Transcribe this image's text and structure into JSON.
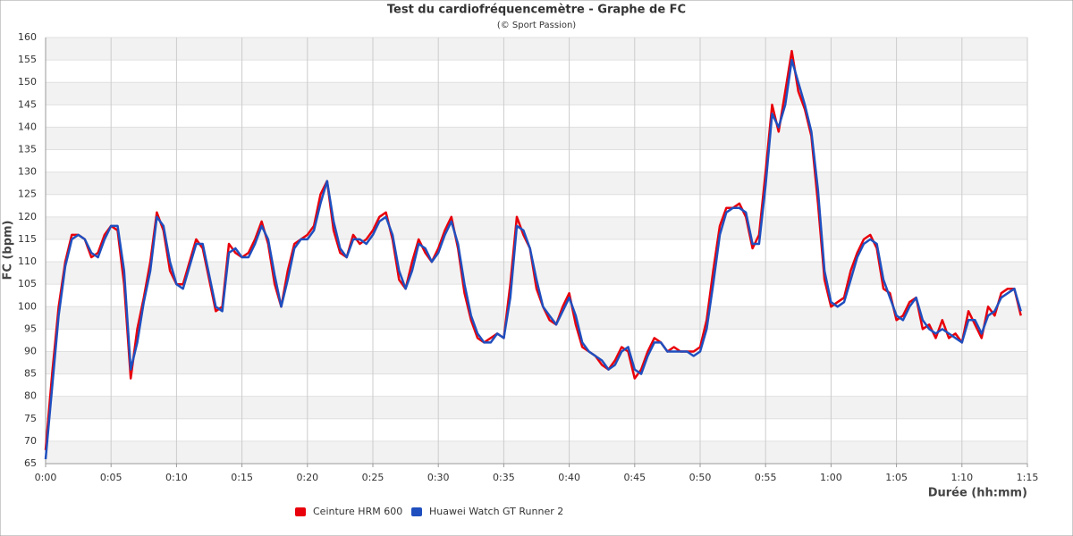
{
  "chart_data": {
    "type": "line",
    "title": "Test du cardiofréquencemètre - Graphe de FC",
    "subtitle": "(© Sport Passion)",
    "x_label": "Durée (hh:mm)",
    "y_label": "FC (bpm)",
    "xlim": [
      0,
      75
    ],
    "xticks": [
      {
        "value": 0,
        "label": "0:00"
      },
      {
        "value": 5,
        "label": "0:05"
      },
      {
        "value": 10,
        "label": "0:10"
      },
      {
        "value": 15,
        "label": "0:15"
      },
      {
        "value": 20,
        "label": "0:20"
      },
      {
        "value": 25,
        "label": "0:25"
      },
      {
        "value": 30,
        "label": "0:30"
      },
      {
        "value": 35,
        "label": "0:35"
      },
      {
        "value": 40,
        "label": "0:40"
      },
      {
        "value": 45,
        "label": "0:45"
      },
      {
        "value": 50,
        "label": "0:50"
      },
      {
        "value": 55,
        "label": "0:55"
      },
      {
        "value": 60,
        "label": "1:00"
      },
      {
        "value": 65,
        "label": "1:05"
      },
      {
        "value": 70,
        "label": "1:10"
      },
      {
        "value": 75,
        "label": "1:15"
      }
    ],
    "ylim": [
      65,
      160
    ],
    "yticks": [
      65,
      70,
      75,
      80,
      85,
      90,
      95,
      100,
      105,
      110,
      115,
      120,
      125,
      130,
      135,
      140,
      145,
      150,
      155,
      160
    ],
    "grid": true,
    "legend": "bottom",
    "x": [
      0,
      0.5,
      1,
      1.5,
      2,
      2.5,
      3,
      3.5,
      4,
      4.5,
      5,
      5.5,
      6,
      6.5,
      7,
      7.5,
      8,
      8.5,
      9,
      9.5,
      10,
      10.5,
      11,
      11.5,
      12,
      12.5,
      13,
      13.5,
      14,
      14.5,
      15,
      15.5,
      16,
      16.5,
      17,
      17.5,
      18,
      18.5,
      19,
      19.5,
      20,
      20.5,
      21,
      21.5,
      22,
      22.5,
      23,
      23.5,
      24,
      24.5,
      25,
      25.5,
      26,
      26.5,
      27,
      27.5,
      28,
      28.5,
      29,
      29.5,
      30,
      30.5,
      31,
      31.5,
      32,
      32.5,
      33,
      33.5,
      34,
      34.5,
      35,
      35.5,
      36,
      36.5,
      37,
      37.5,
      38,
      38.5,
      39,
      39.5,
      40,
      40.5,
      41,
      41.5,
      42,
      42.5,
      43,
      43.5,
      44,
      44.5,
      45,
      45.5,
      46,
      46.5,
      47,
      47.5,
      48,
      48.5,
      49,
      49.5,
      50,
      50.5,
      51,
      51.5,
      52,
      52.5,
      53,
      53.5,
      54,
      54.5,
      55,
      55.5,
      56,
      56.5,
      57,
      57.5,
      58,
      58.5,
      59,
      59.5,
      60,
      60.5,
      61,
      61.5,
      62,
      62.5,
      63,
      63.5,
      64,
      64.5,
      65,
      65.5,
      66,
      66.5,
      67,
      67.5,
      68,
      68.5,
      69,
      69.5,
      70,
      70.5,
      71,
      71.5,
      72,
      72.5,
      73,
      73.5,
      74,
      74.5
    ],
    "series": [
      {
        "name": "Ceinture HRM 600",
        "color": "#e8000b",
        "values": [
          68,
          85,
          100,
          110,
          116,
          116,
          115,
          111,
          112,
          116,
          118,
          117,
          105,
          84,
          95,
          102,
          110,
          121,
          117,
          108,
          105,
          105,
          110,
          115,
          113,
          106,
          99,
          100,
          114,
          112,
          111,
          112,
          115,
          119,
          114,
          105,
          100,
          108,
          114,
          115,
          116,
          118,
          125,
          128,
          117,
          112,
          111,
          116,
          114,
          115,
          117,
          120,
          121,
          115,
          106,
          104,
          110,
          115,
          112,
          110,
          113,
          117,
          120,
          113,
          103,
          97,
          93,
          92,
          93,
          94,
          93,
          105,
          120,
          116,
          113,
          104,
          100,
          97,
          96,
          100,
          103,
          96,
          91,
          90,
          89,
          87,
          86,
          88,
          91,
          90,
          84,
          86,
          90,
          93,
          92,
          90,
          91,
          90,
          90,
          90,
          91,
          97,
          108,
          118,
          122,
          122,
          123,
          120,
          113,
          116,
          130,
          145,
          139,
          148,
          157,
          148,
          144,
          138,
          123,
          106,
          100,
          101,
          102,
          108,
          112,
          115,
          116,
          113,
          104,
          103,
          97,
          98,
          101,
          102,
          95,
          96,
          93,
          97,
          93,
          94,
          92,
          99,
          96,
          93,
          100,
          98,
          103,
          104,
          104,
          98
        ]
      },
      {
        "name": "Huawei Watch GT Runner 2",
        "color": "#1f4fbf",
        "values": [
          66,
          82,
          98,
          109,
          115,
          116,
          115,
          112,
          111,
          115,
          118,
          118,
          108,
          86,
          92,
          101,
          108,
          120,
          118,
          110,
          105,
          104,
          109,
          114,
          114,
          107,
          100,
          99,
          112,
          113,
          111,
          111,
          114,
          118,
          115,
          107,
          100,
          106,
          113,
          115,
          115,
          117,
          123,
          128,
          119,
          113,
          111,
          115,
          115,
          114,
          116,
          119,
          120,
          116,
          108,
          104,
          108,
          114,
          113,
          110,
          112,
          116,
          119,
          114,
          105,
          98,
          94,
          92,
          92,
          94,
          93,
          102,
          118,
          117,
          113,
          106,
          100,
          98,
          96,
          99,
          102,
          98,
          92,
          90,
          89,
          88,
          86,
          87,
          90,
          91,
          86,
          85,
          89,
          92,
          92,
          90,
          90,
          90,
          90,
          89,
          90,
          95,
          105,
          116,
          121,
          122,
          122,
          121,
          114,
          114,
          127,
          143,
          140,
          145,
          155,
          150,
          145,
          139,
          126,
          108,
          101,
          100,
          101,
          106,
          111,
          114,
          115,
          114,
          106,
          102,
          98,
          97,
          100,
          102,
          97,
          95,
          94,
          95,
          94,
          93,
          92,
          97,
          97,
          94,
          98,
          99,
          102,
          103,
          104,
          99
        ]
      }
    ]
  }
}
